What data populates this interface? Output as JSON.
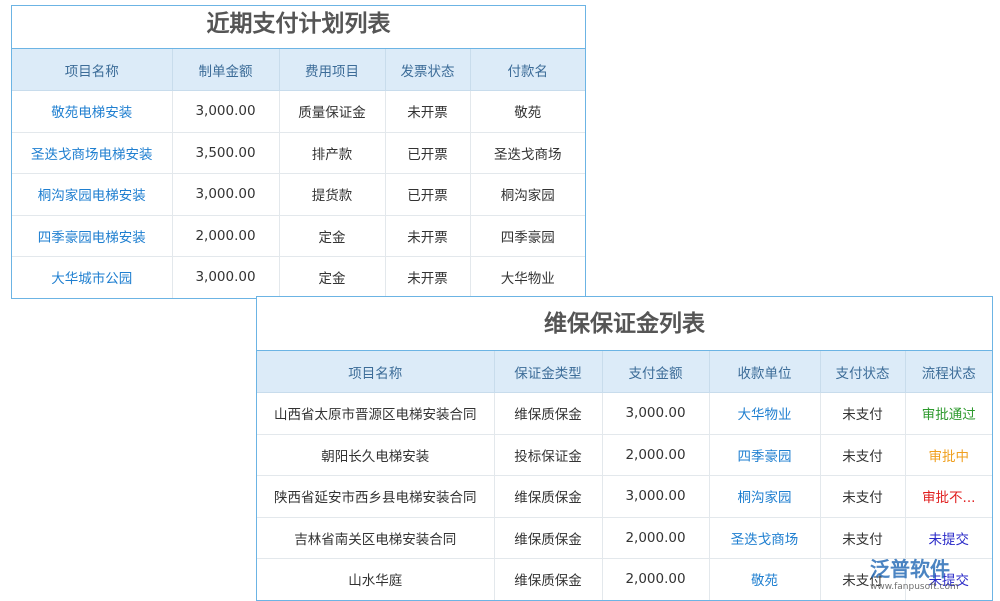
{
  "tables": [
    {
      "title": "近期支付计划列表",
      "headers": [
        "项目名称",
        "制单金额",
        "费用项目",
        "发票状态",
        "付款名"
      ],
      "rows": [
        [
          "敬苑电梯安装",
          "3,000.00",
          "质量保证金",
          "未开票",
          "敬苑"
        ],
        [
          "圣迭戈商场电梯安装",
          "3,500.00",
          "排产款",
          "已开票",
          "圣迭戈商场"
        ],
        [
          "桐沟家园电梯安装",
          "3,000.00",
          "提货款",
          "已开票",
          "桐沟家园"
        ],
        [
          "四季豪园电梯安装",
          "2,000.00",
          "定金",
          "未开票",
          "四季豪园"
        ],
        [
          "大华城市公园",
          "3,000.00",
          "定金",
          "未开票",
          "大华物业"
        ]
      ]
    },
    {
      "title": "维保保证金列表",
      "headers": [
        "项目名称",
        "保证金类型",
        "支付金额",
        "收款单位",
        "支付状态",
        "流程状态"
      ],
      "rows": [
        [
          "山西省太原市晋源区电梯安装合同",
          "维保质保金",
          "3,000.00",
          "大华物业",
          "未支付",
          "审批通过"
        ],
        [
          "朝阳长久电梯安装",
          "投标保证金",
          "2,000.00",
          "四季豪园",
          "未支付",
          "审批中"
        ],
        [
          "陕西省延安市西乡县电梯安装合同",
          "维保质保金",
          "3,000.00",
          "桐沟家园",
          "未支付",
          "审批不..."
        ],
        [
          "吉林省南关区电梯安装合同",
          "维保质保金",
          "2,000.00",
          "圣迭戈商场",
          "未支付",
          "未提交"
        ],
        [
          "山水华庭",
          "维保质保金",
          "2,000.00",
          "敬苑",
          "未支付",
          "未提交"
        ]
      ],
      "status_colors": [
        "#2e9a2e",
        "#f0a020",
        "#e02020",
        "#2a2ac8",
        "#2a2ac8"
      ]
    }
  ],
  "watermark": {
    "brand": "泛普软件",
    "url": "www.fanpusoft.com"
  }
}
